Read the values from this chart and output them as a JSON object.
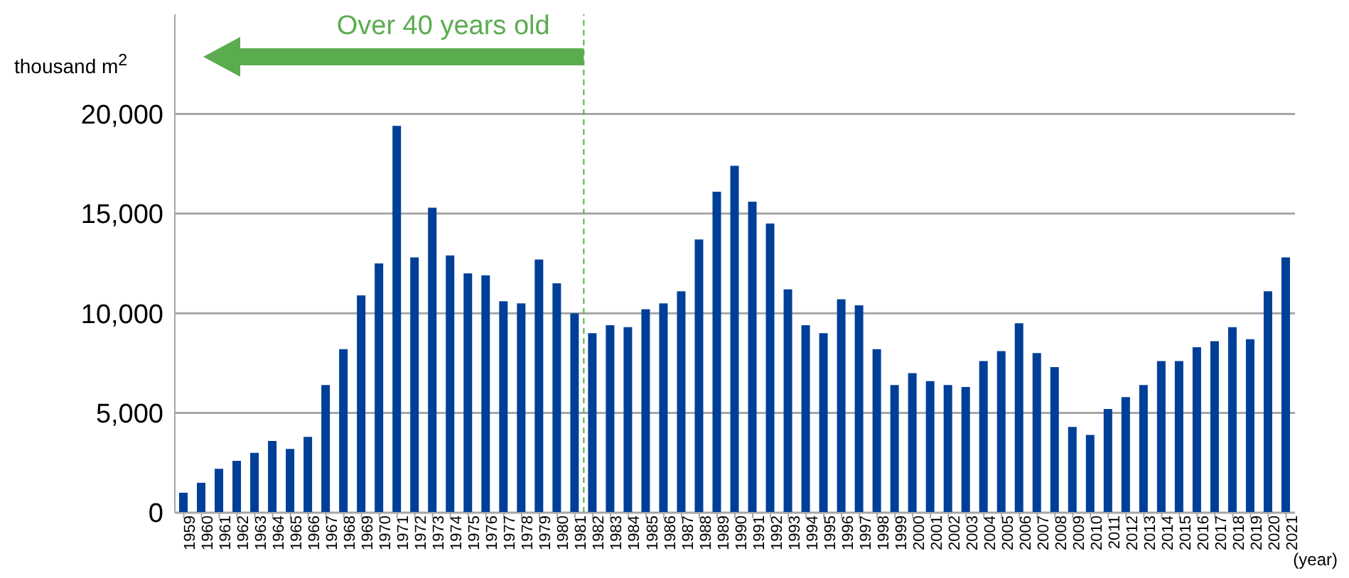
{
  "chart_data": {
    "type": "bar",
    "ylabel": "thousand m$^{2}$",
    "xlabel": "(year)",
    "x": [
      1959,
      1960,
      1961,
      1962,
      1963,
      1964,
      1965,
      1966,
      1967,
      1968,
      1969,
      1970,
      1971,
      1972,
      1973,
      1974,
      1975,
      1976,
      1977,
      1978,
      1979,
      1980,
      1981,
      1982,
      1983,
      1984,
      1985,
      1986,
      1987,
      1988,
      1989,
      1990,
      1991,
      1992,
      1993,
      1994,
      1995,
      1996,
      1997,
      1998,
      1999,
      2000,
      2001,
      2002,
      2003,
      2004,
      2005,
      2006,
      2007,
      2008,
      2009,
      2010,
      2011,
      2012,
      2013,
      2014,
      2015,
      2016,
      2017,
      2018,
      2019,
      2020,
      2021
    ],
    "series": [
      {
        "color": "#003f98",
        "values": [
          1000,
          1500,
          2200,
          2600,
          3000,
          3600,
          3200,
          3800,
          6400,
          8200,
          10900,
          12500,
          19400,
          12800,
          15300,
          12900,
          12000,
          11900,
          10600,
          10500,
          12700,
          11500,
          10000,
          9000,
          9400,
          9300,
          10200,
          10500,
          11100,
          13700,
          16100,
          17400,
          15600,
          14500,
          11200,
          9400,
          9000,
          10700,
          10400,
          8200,
          6400,
          7000,
          6600,
          6400,
          6300,
          7600,
          8100,
          9500,
          8000,
          7300,
          4300,
          3900,
          5200,
          5800,
          6400,
          7600,
          7600,
          8300,
          8600,
          9300,
          8700,
          11100,
          12800
        ]
      }
    ],
    "xlim": [
      1958.5,
      2021.5
    ],
    "xticks": [
      1959,
      1960,
      1961,
      1962,
      1963,
      1964,
      1965,
      1966,
      1967,
      1968,
      1969,
      1970,
      1971,
      1972,
      1973,
      1974,
      1975,
      1976,
      1977,
      1978,
      1979,
      1980,
      1981,
      1982,
      1983,
      1984,
      1985,
      1986,
      1987,
      1988,
      1989,
      1990,
      1991,
      1992,
      1993,
      1994,
      1995,
      1996,
      1997,
      1998,
      1999,
      2000,
      2001,
      2002,
      2003,
      2004,
      2005,
      2006,
      2007,
      2008,
      2009,
      2010,
      2011,
      2012,
      2013,
      2014,
      2015,
      2016,
      2017,
      2018,
      2019,
      2020,
      2021
    ],
    "ylim": [
      0,
      25000
    ],
    "yticks": [
      0,
      {
        "value": 5000,
        "label": "5,000"
      },
      {
        "value": 10000,
        "label": "10,000"
      },
      {
        "value": 15000,
        "label": "15,000"
      },
      {
        "value": 20000,
        "label": "20,000"
      }
    ],
    "grid": "y",
    "ref_lines": [
      {
        "axis": "x",
        "value": 1981.5,
        "label": "Over 40 years old",
        "color": "#5aac4e",
        "line_style": "dashed"
      }
    ]
  }
}
